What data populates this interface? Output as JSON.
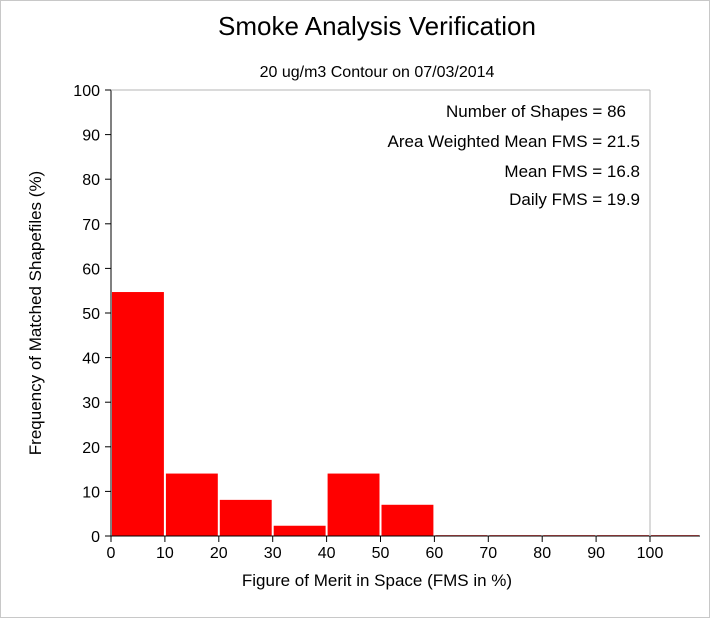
{
  "chart_data": {
    "type": "bar",
    "title": "Smoke Analysis Verification",
    "subtitle": "20 ug/m3 Contour on 07/03/2014",
    "xlabel": "Figure of Merit in Space (FMS in %)",
    "ylabel": "Frequency of Matched Shapefiles (%)",
    "xlim": [
      0,
      100
    ],
    "ylim": [
      0,
      100
    ],
    "xticks": [
      "0",
      "10",
      "20",
      "30",
      "40",
      "50",
      "60",
      "70",
      "80",
      "90",
      "100"
    ],
    "yticks": [
      "0",
      "10",
      "20",
      "30",
      "40",
      "50",
      "60",
      "70",
      "80",
      "90",
      "100"
    ],
    "bins": [
      {
        "start": 0,
        "end": 10,
        "value": 54.7
      },
      {
        "start": 10,
        "end": 20,
        "value": 14
      },
      {
        "start": 20,
        "end": 30,
        "value": 8.1
      },
      {
        "start": 30,
        "end": 40,
        "value": 2.3
      },
      {
        "start": 40,
        "end": 50,
        "value": 14
      },
      {
        "start": 50,
        "end": 60,
        "value": 7
      },
      {
        "start": 60,
        "end": 70,
        "value": 0
      },
      {
        "start": 70,
        "end": 80,
        "value": 0
      },
      {
        "start": 80,
        "end": 90,
        "value": 0
      },
      {
        "start": 90,
        "end": 100,
        "value": 0
      },
      {
        "start": 100,
        "end": 110,
        "value": 0
      }
    ],
    "bar_color": "#ff0000",
    "grid": false,
    "annotations": [
      "Number of Shapes = 86",
      "Area Weighted Mean FMS = 21.5",
      "Mean FMS = 16.8",
      "Daily FMS = 19.9"
    ]
  }
}
